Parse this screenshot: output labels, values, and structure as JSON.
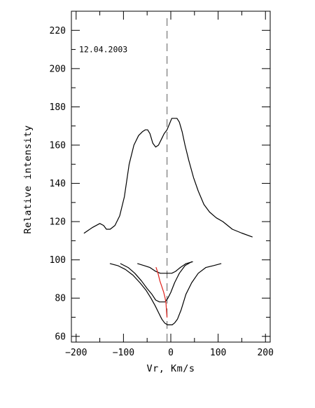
{
  "chart_data": {
    "type": "line",
    "xlabel": "Vr, Km/s",
    "ylabel": "Relative intensity",
    "annotation": "12.04.2003",
    "xlim": [
      -210,
      210
    ],
    "ylim": [
      57,
      230
    ],
    "xticks": [
      -200,
      -100,
      0,
      100,
      200
    ],
    "xtick_labels": [
      "−200",
      "−100",
      "0",
      "100",
      "200"
    ],
    "yticks": [
      60,
      80,
      100,
      120,
      140,
      160,
      180,
      200,
      220
    ],
    "ytick_labels": [
      "60",
      "80",
      "100",
      "120",
      "140",
      "160",
      "180",
      "200",
      "220"
    ],
    "vertical_reference_x": -8,
    "grid": false,
    "series": [
      {
        "color": "#000000",
        "x": [
          -183,
          -165,
          -150,
          -142,
          -136,
          -128,
          -118,
          -108,
          -98,
          -88,
          -78,
          -68,
          -60,
          -54,
          -49,
          -44,
          -38,
          -32,
          -26,
          -20,
          -14,
          -8,
          -3,
          2,
          8,
          13,
          18,
          24,
          30,
          38,
          48,
          58,
          70,
          82,
          96,
          110,
          130,
          150,
          172
        ],
        "y": [
          114,
          117,
          119,
          118,
          116,
          116,
          118,
          123,
          133,
          150,
          160,
          165,
          167,
          168,
          168,
          166,
          161,
          159,
          160,
          163,
          166,
          168,
          171,
          174,
          174,
          174,
          172,
          167,
          160,
          152,
          143,
          136,
          129,
          125,
          122,
          120,
          116,
          114,
          112
        ]
      },
      {
        "color": "#000000",
        "x": [
          -128,
          -112,
          -96,
          -80,
          -65,
          -52,
          -42,
          -33,
          -25,
          -19,
          -13,
          -7,
          -2,
          3,
          8,
          14,
          22,
          32,
          44,
          58,
          74,
          90,
          106
        ],
        "y": [
          98,
          97,
          95,
          92,
          88,
          84,
          80,
          76,
          72,
          69,
          67,
          66,
          66,
          66,
          67,
          69,
          74,
          82,
          88,
          93,
          96,
          97,
          98
        ]
      },
      {
        "color": "#000000",
        "x": [
          -106,
          -90,
          -76,
          -62,
          -50,
          -40,
          -32,
          -24,
          -18,
          -12,
          -6,
          0,
          8,
          18,
          30,
          44
        ],
        "y": [
          98,
          96,
          93,
          89,
          85,
          82,
          79,
          78,
          78,
          78,
          80,
          83,
          88,
          93,
          97,
          99
        ]
      },
      {
        "color": "#000000",
        "x": [
          -70,
          -56,
          -44,
          -32,
          -22,
          -14,
          -6,
          2,
          10,
          20,
          32,
          46
        ],
        "y": [
          98,
          97,
          96,
          94,
          93,
          93,
          93,
          93,
          94,
          96,
          98,
          99
        ]
      },
      {
        "color": "#e0201a",
        "x": [
          -31,
          -27,
          -23,
          -19,
          -15,
          -12,
          -10,
          -9,
          -8
        ],
        "y": [
          96,
          93,
          89,
          86,
          83,
          80,
          77,
          73,
          70
        ]
      }
    ]
  }
}
